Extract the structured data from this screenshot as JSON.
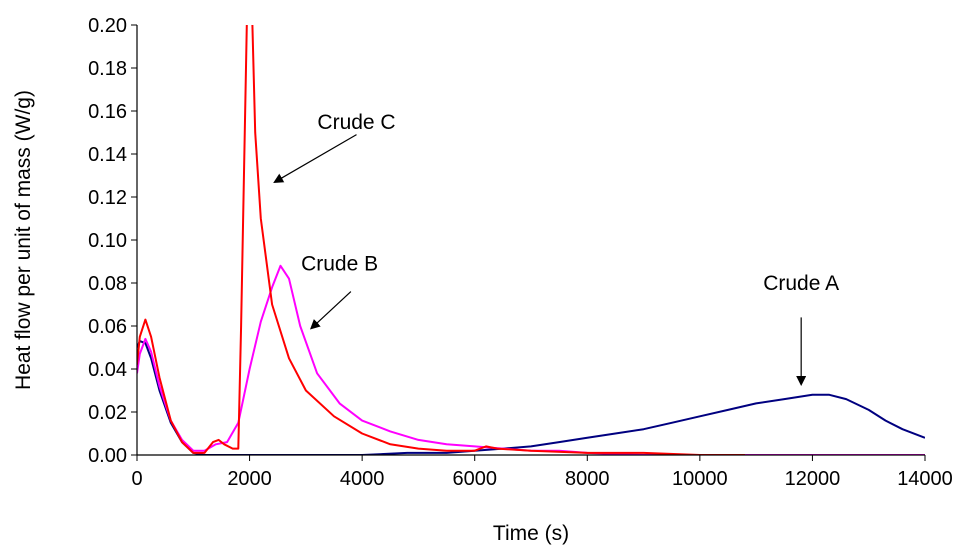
{
  "chart_data": {
    "type": "line",
    "xlabel": "Time (s)",
    "ylabel": "Heat flow per unit of mass (W/g)",
    "xlim": [
      0,
      14000
    ],
    "ylim": [
      0,
      0.2
    ],
    "x_ticks": [
      "0",
      "2000",
      "4000",
      "6000",
      "8000",
      "10000",
      "12000",
      "14000"
    ],
    "y_ticks": [
      "0.00",
      "0.02",
      "0.04",
      "0.06",
      "0.08",
      "0.10",
      "0.12",
      "0.14",
      "0.16",
      "0.18",
      "0.20"
    ],
    "grid": false,
    "series": [
      {
        "name": "Crude A",
        "color": "#000080",
        "x": [
          0,
          50,
          150,
          250,
          400,
          600,
          800,
          1000,
          1200,
          1400,
          1600,
          1800,
          2000,
          3000,
          4000,
          4800,
          5500,
          6000,
          6500,
          7000,
          7500,
          8000,
          8500,
          9000,
          9500,
          10000,
          10500,
          11000,
          11500,
          12000,
          12300,
          12600,
          13000,
          13300,
          13600,
          14000
        ],
        "y": [
          0.05,
          0.053,
          0.052,
          0.045,
          0.03,
          0.015,
          0.006,
          0.001,
          0.0,
          0.0,
          0.0,
          0.0,
          0.0,
          0.0,
          0.0,
          0.001,
          0.001,
          0.002,
          0.003,
          0.004,
          0.006,
          0.008,
          0.01,
          0.012,
          0.015,
          0.018,
          0.021,
          0.024,
          0.026,
          0.028,
          0.028,
          0.026,
          0.021,
          0.016,
          0.012,
          0.008
        ]
      },
      {
        "name": "Crude B",
        "color": "#ff00ff",
        "x": [
          0,
          50,
          150,
          250,
          400,
          600,
          800,
          1000,
          1200,
          1400,
          1600,
          1800,
          2000,
          2200,
          2400,
          2550,
          2700,
          2900,
          3200,
          3600,
          4000,
          4500,
          5000,
          5500,
          6000,
          6500,
          7000,
          7500,
          8000,
          9000,
          10000,
          11000,
          12000,
          13000,
          14000
        ],
        "y": [
          0.038,
          0.047,
          0.054,
          0.048,
          0.032,
          0.016,
          0.007,
          0.002,
          0.002,
          0.005,
          0.006,
          0.015,
          0.04,
          0.062,
          0.078,
          0.088,
          0.082,
          0.06,
          0.038,
          0.024,
          0.016,
          0.011,
          0.007,
          0.005,
          0.004,
          0.003,
          0.002,
          0.002,
          0.001,
          0.0,
          0.0,
          0.0,
          0.0,
          0.0,
          0.0
        ]
      },
      {
        "name": "Crude C",
        "color": "#ff0000",
        "x": [
          0,
          50,
          150,
          250,
          400,
          600,
          800,
          1000,
          1200,
          1350,
          1450,
          1550,
          1700,
          1800,
          1850,
          1950,
          2000,
          2050,
          2100,
          2200,
          2400,
          2700,
          3000,
          3500,
          4000,
          4500,
          5000,
          5500,
          6000,
          6200,
          6400,
          7000,
          8000,
          9000,
          10000,
          10800
        ],
        "y": [
          0.042,
          0.055,
          0.063,
          0.055,
          0.036,
          0.016,
          0.006,
          0.001,
          0.001,
          0.006,
          0.007,
          0.005,
          0.003,
          0.003,
          0.06,
          0.2,
          0.22,
          0.2,
          0.15,
          0.11,
          0.07,
          0.045,
          0.03,
          0.018,
          0.01,
          0.005,
          0.003,
          0.002,
          0.002,
          0.004,
          0.003,
          0.002,
          0.001,
          0.001,
          0.0,
          0.0
        ]
      }
    ],
    "annotations": [
      {
        "text": "Crude C",
        "label_x": 3900,
        "label_y": 0.155,
        "arrow_from_x": 3900,
        "arrow_from_y": 0.149,
        "arrow_to_x": 2450,
        "arrow_to_y": 0.127
      },
      {
        "text": "Crude B",
        "label_x": 3600,
        "label_y": 0.089,
        "arrow_from_x": 3800,
        "arrow_from_y": 0.076,
        "arrow_to_x": 3100,
        "arrow_to_y": 0.059
      },
      {
        "text": "Crude A",
        "label_x": 11800,
        "label_y": 0.08,
        "arrow_from_x": 11800,
        "arrow_from_y": 0.064,
        "arrow_to_x": 11800,
        "arrow_to_y": 0.033
      }
    ]
  }
}
